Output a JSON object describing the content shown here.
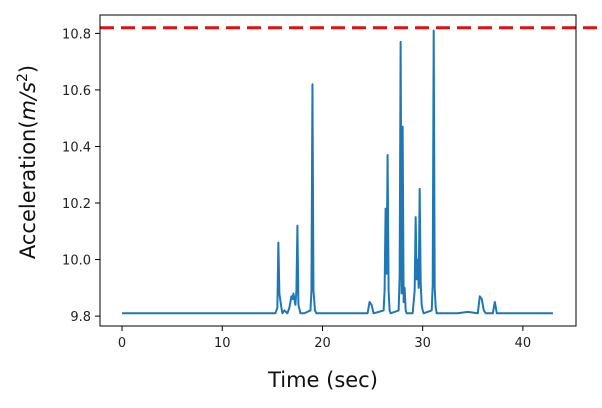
{
  "chart_data": {
    "type": "line",
    "title": "",
    "xlabel": "Time (sec)",
    "ylabel_text": "Acceleration(",
    "ylabel_unit": "m/s",
    "ylabel_exp": "2",
    "ylabel_close": ")",
    "xlim": [
      -2.2,
      45.3
    ],
    "ylim": [
      9.765,
      10.865
    ],
    "x_ticks": [
      0,
      10,
      20,
      30,
      40
    ],
    "x_tick_labels": [
      "0",
      "10",
      "20",
      "30",
      "40"
    ],
    "y_ticks": [
      9.8,
      10.0,
      10.2,
      10.4,
      10.6,
      10.8
    ],
    "y_tick_labels": [
      "9.8",
      "10.0",
      "10.2",
      "10.4",
      "10.6",
      "10.8"
    ],
    "grid": false,
    "threshold": {
      "value": 10.82,
      "color": "#e01010",
      "style": "dashed"
    },
    "series": [
      {
        "color": "#1f77b4",
        "x": [
          0,
          15.3,
          15.5,
          15.6,
          15.7,
          15.9,
          16.0,
          16.2,
          16.5,
          16.7,
          16.9,
          17.0,
          17.1,
          17.3,
          17.4,
          17.5,
          17.6,
          17.8,
          18.2,
          18.8,
          18.9,
          19.0,
          19.1,
          19.25,
          19.4,
          24.5,
          24.7,
          24.9,
          25.1,
          26.1,
          26.2,
          26.3,
          26.4,
          26.5,
          26.6,
          26.7,
          26.8,
          27.6,
          27.7,
          27.8,
          27.9,
          28.0,
          28.1,
          28.2,
          28.3,
          28.4,
          29.0,
          29.2,
          29.3,
          29.4,
          29.5,
          29.6,
          29.7,
          29.8,
          29.9,
          30.0,
          30.1,
          30.9,
          31.0,
          31.1,
          31.2,
          31.3,
          31.4,
          33.5,
          34.5,
          35.5,
          35.7,
          35.9,
          36.1,
          36.3,
          37.0,
          37.2,
          37.4,
          43.0
        ],
        "y": [
          9.81,
          9.81,
          9.83,
          10.06,
          9.88,
          9.83,
          9.81,
          9.82,
          9.81,
          9.83,
          9.87,
          9.86,
          9.88,
          9.84,
          9.89,
          10.12,
          9.84,
          9.81,
          9.81,
          9.82,
          9.89,
          10.62,
          9.89,
          9.82,
          9.81,
          9.81,
          9.85,
          9.84,
          9.81,
          9.82,
          9.89,
          10.18,
          9.95,
          10.37,
          9.89,
          9.82,
          9.81,
          9.82,
          9.94,
          10.77,
          9.88,
          10.47,
          9.85,
          9.9,
          9.82,
          9.81,
          9.81,
          9.89,
          10.15,
          9.93,
          10.0,
          9.9,
          10.25,
          9.92,
          9.84,
          9.82,
          9.81,
          9.82,
          9.91,
          10.81,
          9.9,
          9.83,
          9.81,
          9.81,
          9.815,
          9.81,
          9.87,
          9.86,
          9.82,
          9.81,
          9.81,
          9.85,
          9.81,
          9.81
        ]
      }
    ]
  }
}
